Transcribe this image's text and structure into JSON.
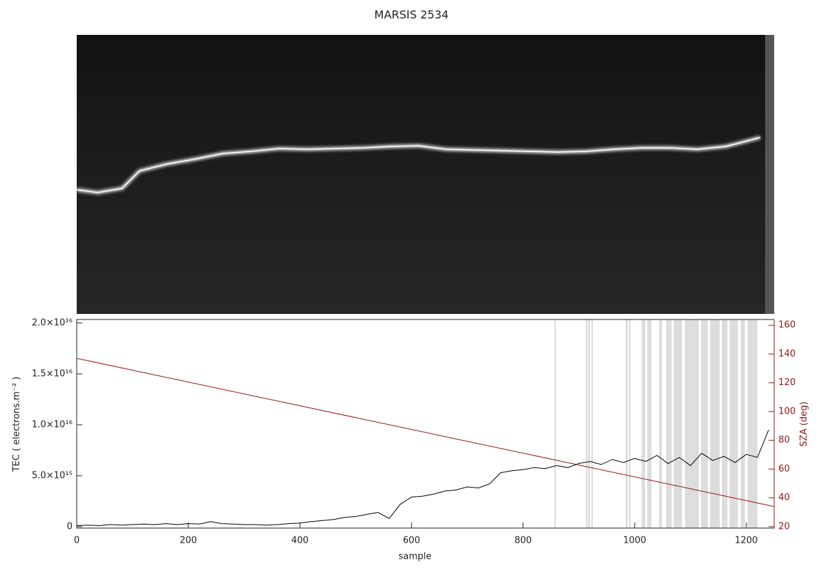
{
  "chart_data": {
    "type": "line",
    "title": "MARSIS 2534",
    "x_label": "sample",
    "y_label": "TEC ( electrons.m⁻² )",
    "y2_label": "SZA (deg)",
    "xlim": [
      0,
      1250
    ],
    "xticks": [
      0,
      200,
      400,
      600,
      800,
      1000,
      1200
    ],
    "ylim": [
      -140000000000000.0,
      2.034e+16
    ],
    "yticks": [
      0,
      {
        "value": 5000000000000000.0,
        "label": "5.0×10¹⁵"
      },
      {
        "value": 1e+16,
        "label": "1.0×10¹⁶"
      },
      {
        "value": 1.5e+16,
        "label": "1.5×10¹⁶"
      },
      {
        "value": 2e+16,
        "label": "2.0×10¹⁶"
      }
    ],
    "y2lim": [
      19,
      164
    ],
    "y2ticks": [
      20,
      40,
      60,
      80,
      100,
      120,
      140,
      160
    ],
    "series": [
      {
        "color": "#000000",
        "x": [
          0,
          20,
          40,
          60,
          80,
          100,
          120,
          140,
          160,
          180,
          200,
          220,
          240,
          260,
          280,
          300,
          320,
          340,
          360,
          380,
          400,
          420,
          440,
          460,
          480,
          500,
          520,
          540,
          560,
          580,
          600,
          620,
          640,
          660,
          680,
          700,
          720,
          740,
          760,
          780,
          800,
          820,
          840,
          860,
          880,
          900,
          920,
          940,
          960,
          980,
          1000,
          1020,
          1040,
          1060,
          1080,
          1100,
          1120,
          1140,
          1160,
          1180,
          1200,
          1220,
          1240
        ],
        "values": [
          100000000000000.0,
          150000000000000.0,
          100000000000000.0,
          200000000000000.0,
          150000000000000.0,
          200000000000000.0,
          250000000000000.0,
          200000000000000.0,
          300000000000000.0,
          200000000000000.0,
          300000000000000.0,
          250000000000000.0,
          500000000000000.0,
          300000000000000.0,
          250000000000000.0,
          200000000000000.0,
          200000000000000.0,
          150000000000000.0,
          200000000000000.0,
          300000000000000.0,
          350000000000000.0,
          500000000000000.0,
          600000000000000.0,
          700000000000000.0,
          900000000000000.0,
          1000000000000000.0,
          1200000000000000.0,
          1400000000000000.0,
          800000000000000.0,
          2200000000000000.0,
          2900000000000000.0,
          3000000000000000.0,
          3200000000000000.0,
          3500000000000000.0,
          3600000000000000.0,
          3900000000000000.0,
          3800000000000000.0,
          4200000000000000.0,
          5300000000000000.0,
          5500000000000000.0,
          5600000000000000.0,
          5800000000000000.0,
          5700000000000000.0,
          6000000000000000.0,
          5800000000000000.0,
          6200000000000000.0,
          6400000000000000.0,
          6100000000000000.0,
          6600000000000000.0,
          6300000000000000.0,
          6700000000000000.0,
          6400000000000000.0,
          7000000000000000.0,
          6200000000000000.0,
          6800000000000000.0,
          6000000000000000.0,
          7200000000000000.0,
          6500000000000000.0,
          6900000000000000.0,
          6300000000000000.0,
          7100000000000000.0,
          6800000000000000.0,
          9500000000000000.0
        ]
      },
      {
        "color": "#8b1a1a",
        "axis": "y2",
        "x": [
          0,
          1250
        ],
        "values": [
          137,
          34
        ]
      }
    ]
  }
}
